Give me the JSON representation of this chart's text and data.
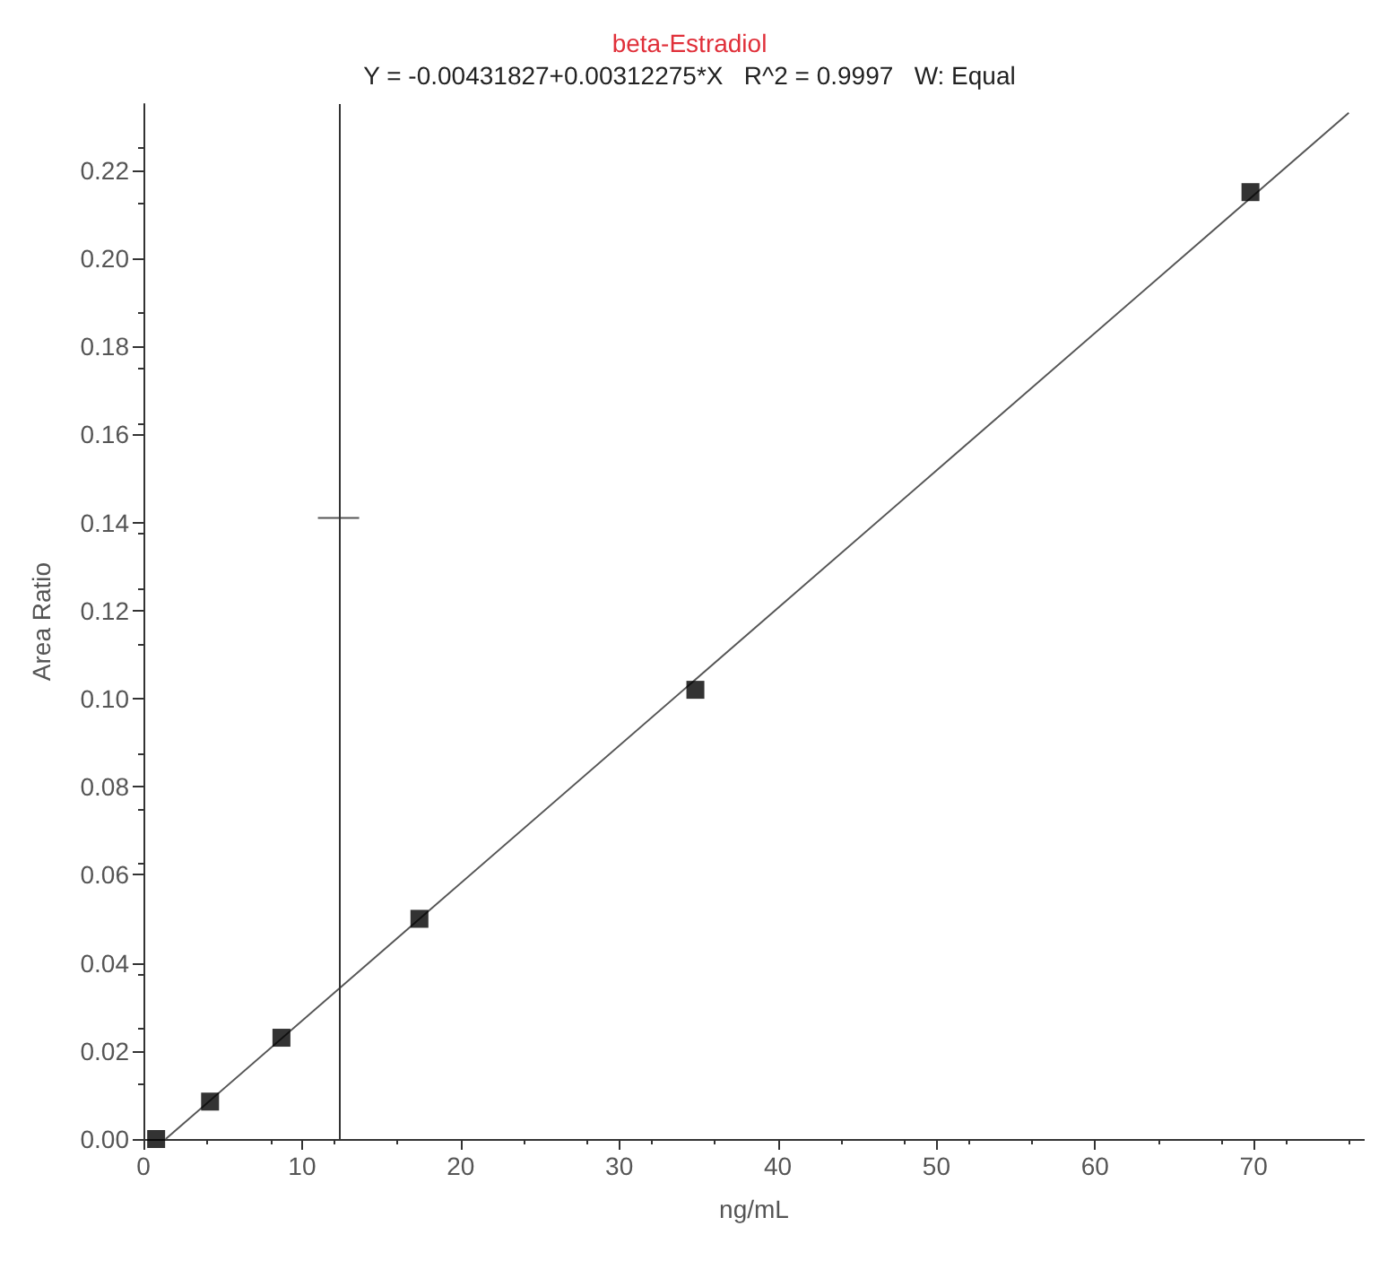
{
  "chart_data": {
    "type": "scatter",
    "title": "beta-Estradiol",
    "subtitle": "Y = -0.00431827+0.00312275*X   R^2 = 0.9997   W: Equal",
    "xlabel": "ng/mL",
    "ylabel": "Area Ratio",
    "series": [
      {
        "color": "#000000",
        "marker": "square",
        "x": [
          0.8,
          4.2,
          8.7,
          17.4,
          34.8,
          69.8
        ],
        "values": [
          0.0,
          0.0085,
          0.023,
          0.05,
          0.102,
          0.215
        ]
      },
      {
        "type": "line",
        "color": "#555555",
        "marker": "none",
        "x": [
          1.4,
          76
        ],
        "values": [
          0.0,
          0.233
        ]
      },
      {
        "type": "line",
        "color": "#555555",
        "marker": "none",
        "x": [
          11.0,
          13.6
        ],
        "values": [
          0.141,
          0.141
        ]
      }
    ],
    "ref_lines": [
      {
        "axis": "x",
        "value": 12.3,
        "color": "#333333",
        "line_style": "solid"
      }
    ],
    "xlim": [
      0,
      77
    ],
    "ylim": [
      0,
      0.235
    ],
    "xticks": [
      0,
      10,
      20,
      30,
      40,
      50,
      60,
      70
    ],
    "yticks": [
      {
        "value": 0,
        "label": "0.00"
      },
      {
        "value": 0.02,
        "label": "0.02"
      },
      {
        "value": 0.04,
        "label": "0.04"
      },
      {
        "value": 0.06,
        "label": "0.06"
      },
      {
        "value": 0.08,
        "label": "0.08"
      },
      {
        "value": 0.1,
        "label": "0.10"
      },
      {
        "value": 0.12,
        "label": "0.12"
      },
      {
        "value": 0.14,
        "label": "0.14"
      },
      {
        "value": 0.16,
        "label": "0.16"
      },
      {
        "value": 0.18,
        "label": "0.18"
      },
      {
        "value": 0.2,
        "label": "0.20"
      },
      {
        "value": 0.22,
        "label": "0.22"
      }
    ],
    "grid": false
  }
}
